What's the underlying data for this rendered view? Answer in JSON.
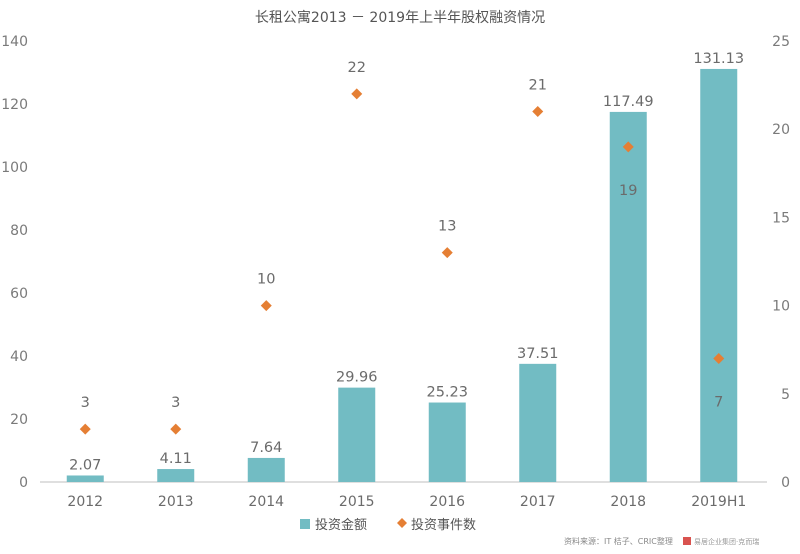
{
  "chart_data": {
    "type": "bar",
    "title": "长租公寓2013 － 2019年上半年股权融资情况",
    "categories": [
      "2012",
      "2013",
      "2014",
      "2015",
      "2016",
      "2017",
      "2018",
      "2019H1"
    ],
    "series": [
      {
        "name": "投资金额",
        "type": "bar",
        "axis": "left",
        "color": "#72bcc3",
        "values": [
          2.07,
          4.11,
          7.64,
          29.96,
          25.23,
          37.51,
          117.49,
          131.13
        ],
        "labels": [
          "2.07",
          "4.11",
          "7.64",
          "29.96",
          "25.23",
          "37.51",
          "117.49",
          "131.13"
        ]
      },
      {
        "name": "投资事件数",
        "type": "scatter",
        "marker": "diamond",
        "axis": "right",
        "color": "#e57f34",
        "values": [
          3,
          3,
          10,
          22,
          13,
          21,
          19,
          7
        ],
        "labels": [
          "3",
          "3",
          "10",
          "22",
          "13",
          "21",
          "19",
          "7"
        ]
      }
    ],
    "y_left": {
      "min": 0,
      "max": 140,
      "ticks": [
        0,
        20,
        40,
        60,
        80,
        100,
        120,
        140
      ]
    },
    "y_right": {
      "min": 0,
      "max": 25,
      "ticks": [
        0,
        5,
        10,
        15,
        20,
        25
      ]
    },
    "legend_position": "bottom-center",
    "grid": false
  },
  "footer": {
    "source": "资料来源：IT 桔子、CRIC整理",
    "watermark": "易居企业集团·克而瑞"
  }
}
